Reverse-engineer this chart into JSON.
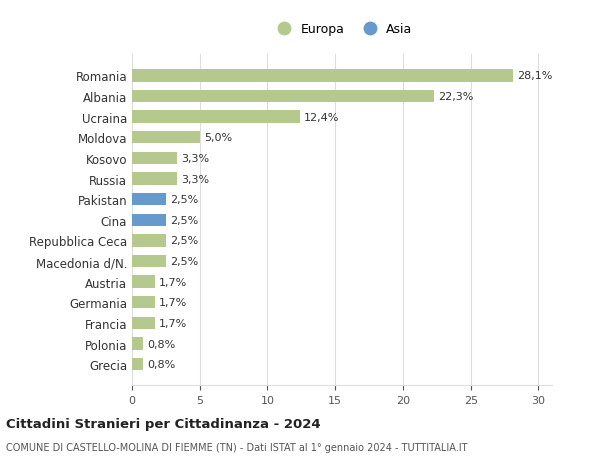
{
  "categories": [
    "Romania",
    "Albania",
    "Ucraina",
    "Moldova",
    "Kosovo",
    "Russia",
    "Pakistan",
    "Cina",
    "Repubblica Ceca",
    "Macedonia d/N.",
    "Austria",
    "Germania",
    "Francia",
    "Polonia",
    "Grecia"
  ],
  "values": [
    28.1,
    22.3,
    12.4,
    5.0,
    3.3,
    3.3,
    2.5,
    2.5,
    2.5,
    2.5,
    1.7,
    1.7,
    1.7,
    0.8,
    0.8
  ],
  "labels": [
    "28,1%",
    "22,3%",
    "12,4%",
    "5,0%",
    "3,3%",
    "3,3%",
    "2,5%",
    "2,5%",
    "2,5%",
    "2,5%",
    "1,7%",
    "1,7%",
    "1,7%",
    "0,8%",
    "0,8%"
  ],
  "colors": [
    "#b5c98e",
    "#b5c98e",
    "#b5c98e",
    "#b5c98e",
    "#b5c98e",
    "#b5c98e",
    "#6699cc",
    "#6699cc",
    "#b5c98e",
    "#b5c98e",
    "#b5c98e",
    "#b5c98e",
    "#b5c98e",
    "#b5c98e",
    "#b5c98e"
  ],
  "europa_color": "#b5c98e",
  "asia_color": "#6699cc",
  "title": "Cittadini Stranieri per Cittadinanza - 2024",
  "subtitle": "COMUNE DI CASTELLO-MOLINA DI FIEMME (TN) - Dati ISTAT al 1° gennaio 2024 - TUTTITALIA.IT",
  "xlim": [
    0,
    31
  ],
  "xticks": [
    0,
    5,
    10,
    15,
    20,
    25,
    30
  ],
  "background_color": "#ffffff",
  "grid_color": "#dddddd"
}
